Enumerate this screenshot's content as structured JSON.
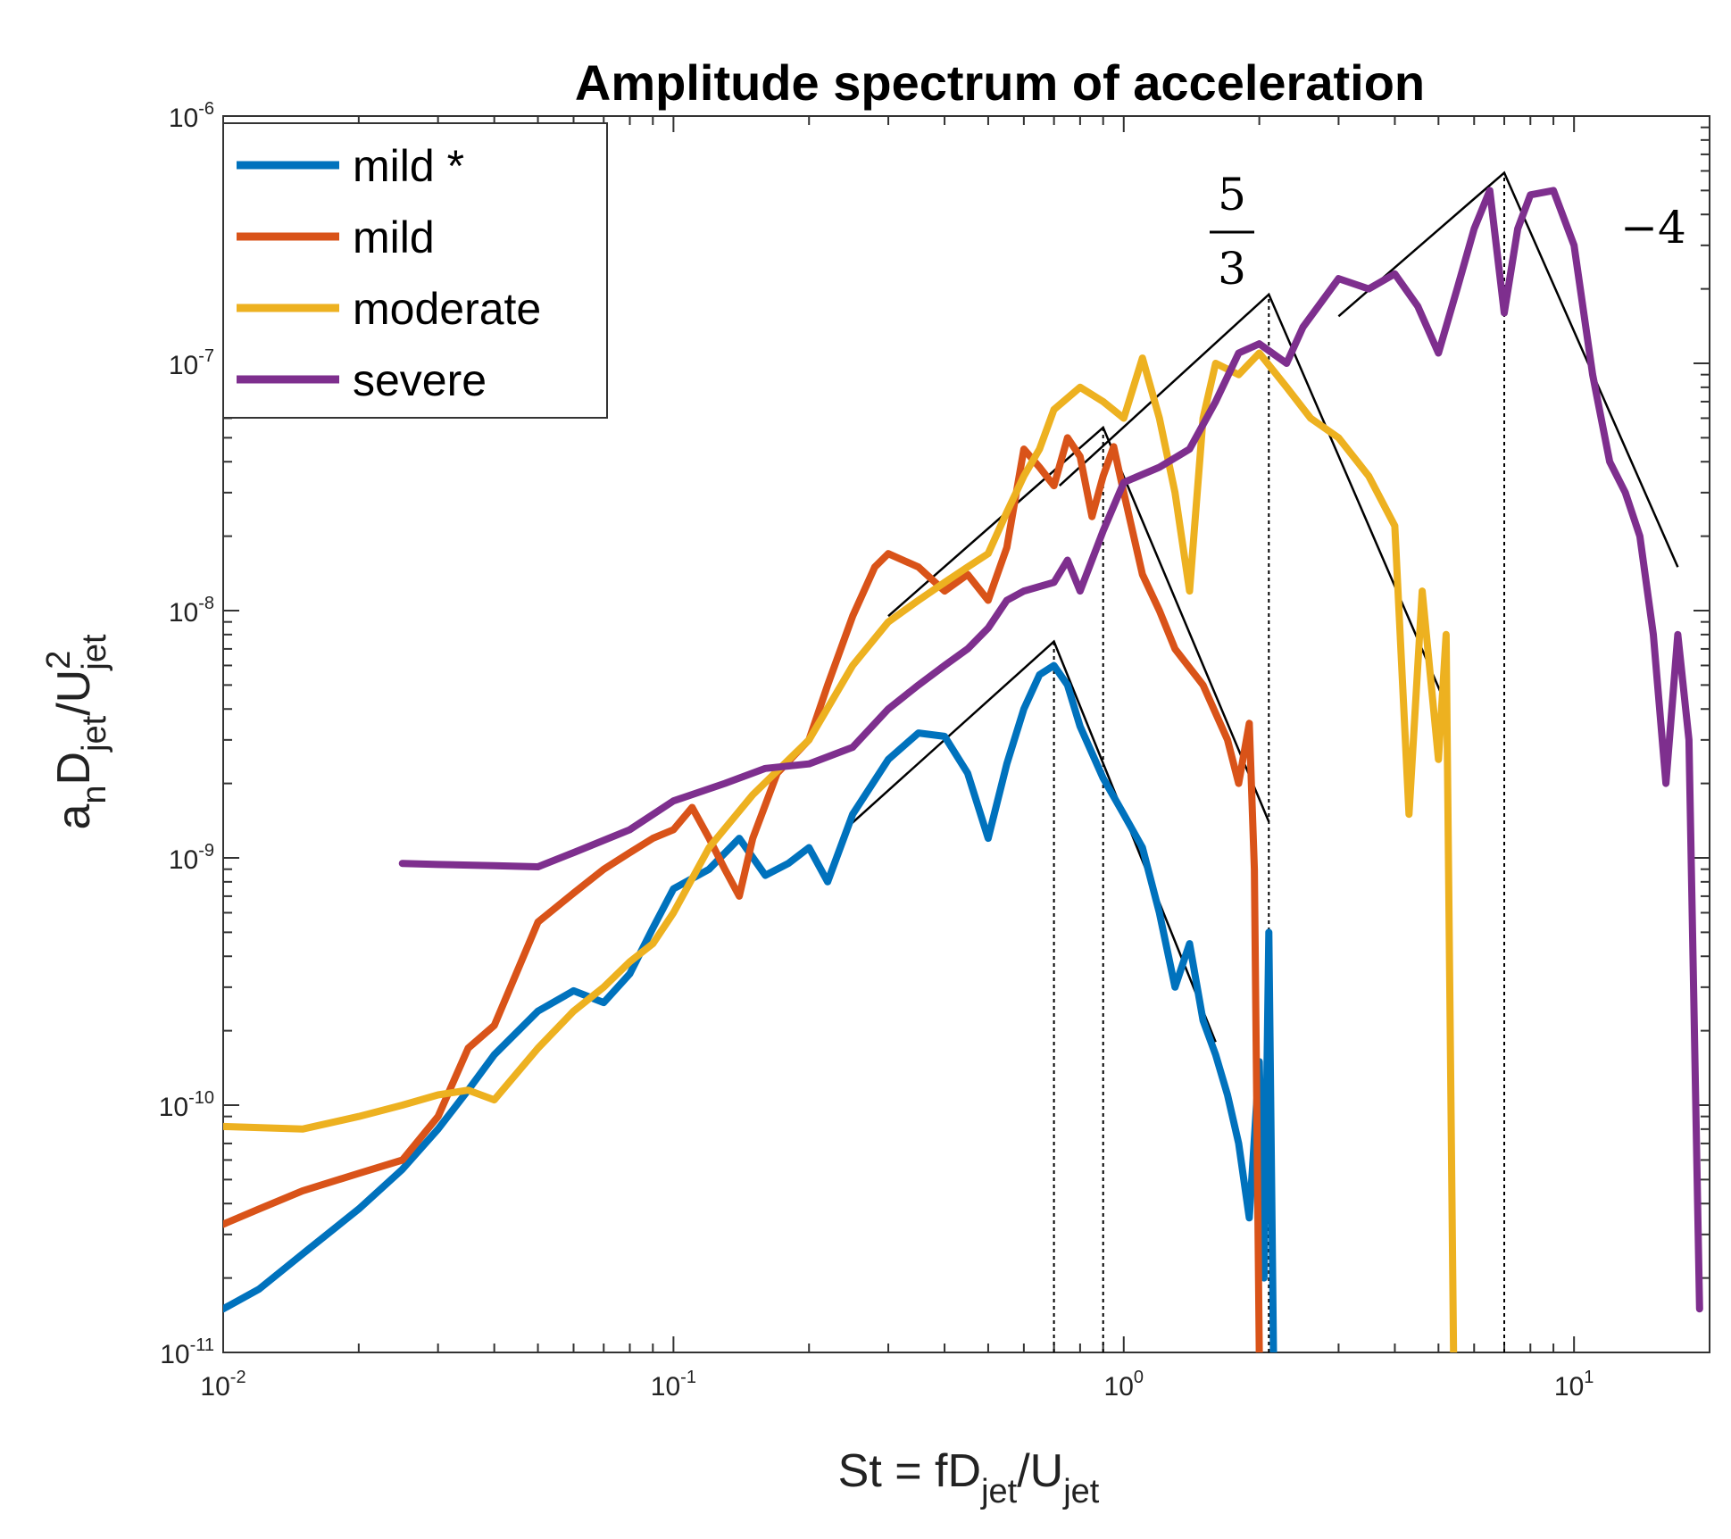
{
  "chart_data": {
    "type": "line",
    "title": "Amplitude spectrum of acceleration",
    "x_scale": "log",
    "y_scale": "log",
    "xlim": [
      0.01,
      20
    ],
    "ylim": [
      1e-11,
      1e-06
    ],
    "grid": false,
    "legend_position": "top-left",
    "xlabel": {
      "base": "St = fD",
      "sub1": "jet",
      "mid": "/U",
      "sub2": "jet"
    },
    "ylabel": {
      "a": "a",
      "asub": "n",
      "d": "D",
      "dsub": "jet",
      "u": "/U",
      "usup": "2",
      "usub": "jet"
    },
    "x_ticks": [
      {
        "base": "10",
        "exp": "-2"
      },
      {
        "base": "10",
        "exp": "-1"
      },
      {
        "base": "10",
        "exp": "0"
      },
      {
        "base": "10",
        "exp": "1"
      }
    ],
    "y_ticks": [
      {
        "base": "10",
        "exp": "-11"
      },
      {
        "base": "10",
        "exp": "-10"
      },
      {
        "base": "10",
        "exp": "-9"
      },
      {
        "base": "10",
        "exp": "-8"
      },
      {
        "base": "10",
        "exp": "-7"
      },
      {
        "base": "10",
        "exp": "-6"
      }
    ],
    "series": [
      {
        "name": "mild *",
        "color": "#0072BD",
        "points": [
          [
            0.01,
            1.5e-11
          ],
          [
            0.012,
            1.8e-11
          ],
          [
            0.015,
            2.5e-11
          ],
          [
            0.02,
            3.8e-11
          ],
          [
            0.025,
            5.5e-11
          ],
          [
            0.03,
            8e-11
          ],
          [
            0.035,
            1.15e-10
          ],
          [
            0.04,
            1.6e-10
          ],
          [
            0.05,
            2.4e-10
          ],
          [
            0.06,
            2.9e-10
          ],
          [
            0.07,
            2.6e-10
          ],
          [
            0.08,
            3.4e-10
          ],
          [
            0.09,
            5.2e-10
          ],
          [
            0.1,
            7.5e-10
          ],
          [
            0.12,
            9e-10
          ],
          [
            0.14,
            1.2e-09
          ],
          [
            0.16,
            8.5e-10
          ],
          [
            0.18,
            9.5e-10
          ],
          [
            0.2,
            1.1e-09
          ],
          [
            0.22,
            8e-10
          ],
          [
            0.25,
            1.5e-09
          ],
          [
            0.3,
            2.5e-09
          ],
          [
            0.35,
            3.2e-09
          ],
          [
            0.4,
            3.1e-09
          ],
          [
            0.45,
            2.2e-09
          ],
          [
            0.5,
            1.2e-09
          ],
          [
            0.55,
            2.4e-09
          ],
          [
            0.6,
            4e-09
          ],
          [
            0.65,
            5.5e-09
          ],
          [
            0.7,
            6e-09
          ],
          [
            0.75,
            5e-09
          ],
          [
            0.8,
            3.4e-09
          ],
          [
            0.9,
            2.1e-09
          ],
          [
            1.0,
            1.5e-09
          ],
          [
            1.1,
            1.1e-09
          ],
          [
            1.2,
            6e-10
          ],
          [
            1.3,
            3e-10
          ],
          [
            1.4,
            4.5e-10
          ],
          [
            1.5,
            2.2e-10
          ],
          [
            1.6,
            1.6e-10
          ],
          [
            1.7,
            1.1e-10
          ],
          [
            1.8,
            7e-11
          ],
          [
            1.9,
            3.5e-11
          ],
          [
            2.0,
            1.5e-10
          ],
          [
            2.05,
            2e-11
          ],
          [
            2.1,
            5e-10
          ],
          [
            2.15,
            1e-11
          ]
        ]
      },
      {
        "name": "mild",
        "color": "#D95319",
        "points": [
          [
            0.01,
            3.3e-11
          ],
          [
            0.012,
            3.8e-11
          ],
          [
            0.015,
            4.5e-11
          ],
          [
            0.02,
            5.3e-11
          ],
          [
            0.025,
            6e-11
          ],
          [
            0.03,
            9e-11
          ],
          [
            0.035,
            1.7e-10
          ],
          [
            0.04,
            2.1e-10
          ],
          [
            0.05,
            5.5e-10
          ],
          [
            0.06,
            7.2e-10
          ],
          [
            0.07,
            9e-10
          ],
          [
            0.08,
            1.05e-09
          ],
          [
            0.09,
            1.2e-09
          ],
          [
            0.1,
            1.3e-09
          ],
          [
            0.11,
            1.6e-09
          ],
          [
            0.12,
            1.2e-09
          ],
          [
            0.13,
            9e-10
          ],
          [
            0.14,
            7e-10
          ],
          [
            0.15,
            1.2e-09
          ],
          [
            0.17,
            2.2e-09
          ],
          [
            0.2,
            3e-09
          ],
          [
            0.22,
            5e-09
          ],
          [
            0.25,
            9.5e-09
          ],
          [
            0.28,
            1.5e-08
          ],
          [
            0.3,
            1.7e-08
          ],
          [
            0.35,
            1.5e-08
          ],
          [
            0.4,
            1.2e-08
          ],
          [
            0.45,
            1.4e-08
          ],
          [
            0.5,
            1.1e-08
          ],
          [
            0.55,
            1.8e-08
          ],
          [
            0.6,
            4.5e-08
          ],
          [
            0.65,
            3.8e-08
          ],
          [
            0.7,
            3.2e-08
          ],
          [
            0.75,
            5e-08
          ],
          [
            0.8,
            4.2e-08
          ],
          [
            0.85,
            2.4e-08
          ],
          [
            0.9,
            3.5e-08
          ],
          [
            0.95,
            4.6e-08
          ],
          [
            1.0,
            3e-08
          ],
          [
            1.1,
            1.4e-08
          ],
          [
            1.2,
            1e-08
          ],
          [
            1.3,
            7e-09
          ],
          [
            1.5,
            5e-09
          ],
          [
            1.7,
            3e-09
          ],
          [
            1.8,
            2e-09
          ],
          [
            1.9,
            3.5e-09
          ],
          [
            1.95,
            9e-10
          ],
          [
            2.0,
            1e-11
          ]
        ]
      },
      {
        "name": "moderate",
        "color": "#EDB120",
        "points": [
          [
            0.01,
            8.2e-11
          ],
          [
            0.015,
            8e-11
          ],
          [
            0.02,
            9e-11
          ],
          [
            0.025,
            1e-10
          ],
          [
            0.03,
            1.1e-10
          ],
          [
            0.035,
            1.15e-10
          ],
          [
            0.04,
            1.05e-10
          ],
          [
            0.05,
            1.7e-10
          ],
          [
            0.06,
            2.4e-10
          ],
          [
            0.07,
            3e-10
          ],
          [
            0.08,
            3.8e-10
          ],
          [
            0.09,
            4.5e-10
          ],
          [
            0.1,
            6e-10
          ],
          [
            0.12,
            1.1e-09
          ],
          [
            0.15,
            1.8e-09
          ],
          [
            0.2,
            3e-09
          ],
          [
            0.25,
            6e-09
          ],
          [
            0.3,
            9e-09
          ],
          [
            0.35,
            1.1e-08
          ],
          [
            0.4,
            1.3e-08
          ],
          [
            0.45,
            1.5e-08
          ],
          [
            0.5,
            1.7e-08
          ],
          [
            0.55,
            2.5e-08
          ],
          [
            0.6,
            3.5e-08
          ],
          [
            0.65,
            4.5e-08
          ],
          [
            0.7,
            6.5e-08
          ],
          [
            0.8,
            8e-08
          ],
          [
            0.9,
            7e-08
          ],
          [
            1.0,
            6e-08
          ],
          [
            1.1,
            1.05e-07
          ],
          [
            1.2,
            6e-08
          ],
          [
            1.3,
            3e-08
          ],
          [
            1.4,
            1.2e-08
          ],
          [
            1.5,
            6e-08
          ],
          [
            1.6,
            1e-07
          ],
          [
            1.8,
            9e-08
          ],
          [
            2.0,
            1.1e-07
          ],
          [
            2.3,
            8e-08
          ],
          [
            2.6,
            6e-08
          ],
          [
            3.0,
            5e-08
          ],
          [
            3.5,
            3.5e-08
          ],
          [
            4.0,
            2.2e-08
          ],
          [
            4.3,
            1.5e-09
          ],
          [
            4.6,
            1.2e-08
          ],
          [
            5.0,
            2.5e-09
          ],
          [
            5.2,
            8e-09
          ],
          [
            5.4,
            1e-11
          ]
        ]
      },
      {
        "name": "severe",
        "color": "#7E2F8E",
        "points": [
          [
            0.025,
            9.5e-10
          ],
          [
            0.03,
            9.4e-10
          ],
          [
            0.04,
            9.3e-10
          ],
          [
            0.05,
            9.2e-10
          ],
          [
            0.06,
            1.05e-09
          ],
          [
            0.08,
            1.3e-09
          ],
          [
            0.1,
            1.7e-09
          ],
          [
            0.13,
            2e-09
          ],
          [
            0.16,
            2.3e-09
          ],
          [
            0.2,
            2.4e-09
          ],
          [
            0.25,
            2.8e-09
          ],
          [
            0.3,
            4e-09
          ],
          [
            0.35,
            5e-09
          ],
          [
            0.4,
            6e-09
          ],
          [
            0.45,
            7e-09
          ],
          [
            0.5,
            8.5e-09
          ],
          [
            0.55,
            1.1e-08
          ],
          [
            0.6,
            1.2e-08
          ],
          [
            0.7,
            1.3e-08
          ],
          [
            0.75,
            1.6e-08
          ],
          [
            0.8,
            1.2e-08
          ],
          [
            0.9,
            2.1e-08
          ],
          [
            1.0,
            3.3e-08
          ],
          [
            1.2,
            3.8e-08
          ],
          [
            1.4,
            4.5e-08
          ],
          [
            1.6,
            7e-08
          ],
          [
            1.8,
            1.1e-07
          ],
          [
            2.0,
            1.2e-07
          ],
          [
            2.3,
            1e-07
          ],
          [
            2.5,
            1.4e-07
          ],
          [
            3.0,
            2.2e-07
          ],
          [
            3.5,
            2e-07
          ],
          [
            4.0,
            2.3e-07
          ],
          [
            4.5,
            1.7e-07
          ],
          [
            5.0,
            1.1e-07
          ],
          [
            5.5,
            2e-07
          ],
          [
            6.0,
            3.5e-07
          ],
          [
            6.5,
            5e-07
          ],
          [
            7.0,
            1.6e-07
          ],
          [
            7.5,
            3.5e-07
          ],
          [
            8.0,
            4.8e-07
          ],
          [
            9.0,
            5e-07
          ],
          [
            10,
            3e-07
          ],
          [
            11,
            9e-08
          ],
          [
            12,
            4e-08
          ],
          [
            13,
            3e-08
          ],
          [
            14,
            2e-08
          ],
          [
            15,
            8e-09
          ],
          [
            16,
            2e-09
          ],
          [
            17,
            8e-09
          ],
          [
            18,
            3e-09
          ],
          [
            19,
            1.5e-11
          ]
        ]
      }
    ],
    "reference_lines": [
      {
        "color": "#000000",
        "dash": "solid",
        "points": [
          [
            0.24,
            1.3e-09
          ],
          [
            0.7,
            7.5e-09
          ],
          [
            1.6,
            1.8e-10
          ]
        ]
      },
      {
        "color": "#000000",
        "dash": "solid",
        "points": [
          [
            0.3,
            9.5e-09
          ],
          [
            0.9,
            5.5e-08
          ],
          [
            2.1,
            1.4e-09
          ]
        ]
      },
      {
        "color": "#000000",
        "dash": "solid",
        "points": [
          [
            0.72,
            3.2e-08
          ],
          [
            2.1,
            1.9e-07
          ],
          [
            5.1,
            4.5e-09
          ]
        ]
      },
      {
        "color": "#000000",
        "dash": "solid",
        "points": [
          [
            3.0,
            1.55e-07
          ],
          [
            7.0,
            5.9e-07
          ],
          [
            17,
            1.5e-08
          ]
        ]
      },
      {
        "color": "#000000",
        "dash": "dotted",
        "points": [
          [
            0.7,
            1e-11
          ],
          [
            0.7,
            7.5e-09
          ]
        ]
      },
      {
        "color": "#000000",
        "dash": "dotted",
        "points": [
          [
            0.9,
            1e-11
          ],
          [
            0.9,
            5.5e-08
          ]
        ]
      },
      {
        "color": "#000000",
        "dash": "dotted",
        "points": [
          [
            2.1,
            1e-11
          ],
          [
            2.1,
            1.9e-07
          ]
        ]
      },
      {
        "color": "#000000",
        "dash": "dotted",
        "points": [
          [
            7.0,
            1e-11
          ],
          [
            7.0,
            5.9e-07
          ]
        ]
      }
    ],
    "annotations": {
      "slope_up_num": "5",
      "slope_up_den": "3",
      "slope_down": "−4"
    }
  }
}
